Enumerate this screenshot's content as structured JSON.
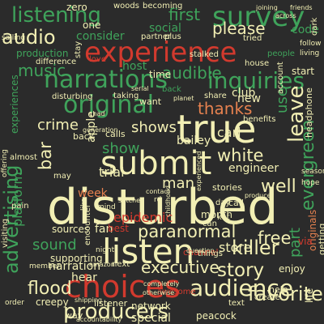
{
  "palette": {
    "background": "#2b2b2b",
    "cream": "#f2efb4",
    "green": "#3fa35b",
    "red": "#d23a2e",
    "orange": "#e5814f",
    "pale_green": "#93cf8a"
  },
  "words": [
    {
      "text": "disturbed",
      "color": "cream"
    },
    {
      "text": "experience",
      "color": "red"
    },
    {
      "text": "choices",
      "color": "red"
    },
    {
      "text": "listen",
      "color": "cream"
    },
    {
      "text": "true",
      "color": "cream"
    },
    {
      "text": "submit",
      "color": "cream"
    },
    {
      "text": "original",
      "color": "green"
    },
    {
      "text": "survey",
      "color": "green"
    },
    {
      "text": "listening",
      "color": "green"
    },
    {
      "text": "narrations",
      "color": "green"
    },
    {
      "text": "inquiries",
      "color": "green"
    },
    {
      "text": "advertising",
      "color": "green"
    },
    {
      "text": "audience",
      "color": "cream"
    },
    {
      "text": "producers",
      "color": "cream"
    },
    {
      "text": "paranormal",
      "color": "cream"
    },
    {
      "text": "story",
      "color": "cream"
    },
    {
      "text": "killer",
      "color": "cream"
    },
    {
      "text": "favorite",
      "color": "cream"
    },
    {
      "text": "flood",
      "color": "cream"
    },
    {
      "text": "free",
      "color": "cream"
    },
    {
      "text": "well",
      "color": "cream"
    },
    {
      "text": "white",
      "color": "cream"
    },
    {
      "text": "audio",
      "color": "cream"
    },
    {
      "text": "music",
      "color": "green"
    },
    {
      "text": "audible",
      "color": "green"
    },
    {
      "text": "please",
      "color": "cream"
    },
    {
      "text": "thanks",
      "color": "orange"
    },
    {
      "text": "leave",
      "color": "cream"
    },
    {
      "text": "show",
      "color": "green"
    },
    {
      "text": "shows",
      "color": "cream"
    },
    {
      "text": "crime",
      "color": "cream"
    },
    {
      "text": "bar",
      "color": "cream"
    },
    {
      "text": "evergreen",
      "color": "green"
    },
    {
      "text": "part",
      "color": "green"
    },
    {
      "text": "first",
      "color": "green"
    },
    {
      "text": "executive",
      "color": "cream"
    },
    {
      "text": "epidemic",
      "color": "red"
    },
    {
      "text": "sound",
      "color": "green"
    },
    {
      "text": "platform",
      "color": "green"
    },
    {
      "text": "trial",
      "color": "cream"
    },
    {
      "text": "week",
      "color": "orange"
    },
    {
      "text": "man",
      "color": "cream"
    },
    {
      "text": "carl",
      "color": "cream"
    },
    {
      "text": "bailey",
      "color": "cream"
    },
    {
      "text": "engineer",
      "color": "cream"
    },
    {
      "text": "store",
      "color": "cream"
    },
    {
      "text": "use",
      "color": "green"
    },
    {
      "text": "network",
      "color": "cream"
    },
    {
      "text": "special",
      "color": "cream"
    },
    {
      "text": "peacock",
      "color": "cream"
    },
    {
      "text": "consider",
      "color": "green"
    },
    {
      "text": "social",
      "color": "green"
    },
    {
      "text": "host",
      "color": "green"
    },
    {
      "text": "new",
      "color": "cream"
    },
    {
      "text": "code",
      "color": "green"
    },
    {
      "text": "time",
      "color": "cream"
    },
    {
      "text": "fan",
      "color": "cream"
    },
    {
      "text": "best",
      "color": "red"
    },
    {
      "text": "narration",
      "color": "cream"
    },
    {
      "text": "sources",
      "color": "cream"
    },
    {
      "text": "hear",
      "color": "cream"
    },
    {
      "text": "creepy",
      "color": "cream"
    },
    {
      "text": "stories",
      "color": "cream"
    },
    {
      "text": "month",
      "color": "cream"
    },
    {
      "text": "apple",
      "color": "cream"
    },
    {
      "text": "club",
      "color": "cream"
    },
    {
      "text": "back",
      "color": "cream"
    },
    {
      "text": "calls",
      "color": "cream"
    },
    {
      "text": "help",
      "color": "cream"
    },
    {
      "text": "enjoy",
      "color": "cream"
    },
    {
      "text": "supporting",
      "color": "cream"
    },
    {
      "text": "listener",
      "color": "cream"
    },
    {
      "text": "production",
      "color": "green"
    },
    {
      "text": "zero",
      "color": "cream"
    },
    {
      "text": "woods",
      "color": "cream"
    },
    {
      "text": "becoming",
      "color": "cream"
    },
    {
      "text": "one",
      "color": "cream"
    },
    {
      "text": "partner",
      "color": "cream"
    },
    {
      "text": "love",
      "color": "red"
    },
    {
      "text": "tried",
      "color": "cream"
    },
    {
      "text": "start",
      "color": "cream"
    },
    {
      "text": "account",
      "color": "cream"
    },
    {
      "text": "stalked",
      "color": "cream"
    },
    {
      "text": "house",
      "color": "cream"
    },
    {
      "text": "plus",
      "color": "cream"
    },
    {
      "text": "want",
      "color": "cream"
    },
    {
      "text": "share",
      "color": "cream"
    },
    {
      "text": "benefits",
      "color": "cream"
    },
    {
      "text": "headphone",
      "color": "cream"
    },
    {
      "text": "disturbing",
      "color": "cream"
    },
    {
      "text": "taking",
      "color": "cream"
    },
    {
      "text": "experiences",
      "color": "green"
    },
    {
      "text": "difference",
      "color": "cream"
    },
    {
      "text": "sailing",
      "color": "cream"
    },
    {
      "text": "awesome",
      "color": "red"
    },
    {
      "text": "generation",
      "color": "cream"
    },
    {
      "text": "member",
      "color": "cream"
    },
    {
      "text": "next",
      "color": "cream"
    },
    {
      "text": "order",
      "color": "cream"
    },
    {
      "text": "shipping",
      "color": "cream"
    },
    {
      "text": "accountability",
      "color": "cream"
    },
    {
      "text": "way",
      "color": "cream"
    },
    {
      "text": "text",
      "color": "cream"
    },
    {
      "text": "life",
      "color": "cream"
    },
    {
      "text": "originals",
      "color": "orange"
    },
    {
      "text": "getting",
      "color": "cream"
    },
    {
      "text": "visiting",
      "color": "cream"
    },
    {
      "text": "encounter",
      "color": "cream"
    },
    {
      "text": "pain",
      "color": "cream"
    },
    {
      "text": "stay",
      "color": "cream"
    },
    {
      "text": "offering",
      "color": "cream"
    },
    {
      "text": "channel",
      "color": "red"
    },
    {
      "text": "completely",
      "color": "cream"
    },
    {
      "text": "otherwise",
      "color": "cream"
    },
    {
      "text": "create",
      "color": "cream"
    },
    {
      "text": "call",
      "color": "cream"
    },
    {
      "text": "chad",
      "color": "cream"
    },
    {
      "text": "kat",
      "color": "cream"
    },
    {
      "text": "day",
      "color": "cream"
    },
    {
      "text": "can",
      "color": "cream"
    },
    {
      "text": "may",
      "color": "cream"
    },
    {
      "text": "things",
      "color": "cream"
    },
    {
      "text": "amazon",
      "color": "cream"
    },
    {
      "text": "almost",
      "color": "cream"
    },
    {
      "text": "back",
      "color": "green"
    },
    {
      "text": "friends",
      "color": "cream"
    },
    {
      "text": "joining",
      "color": "cream"
    },
    {
      "text": "across",
      "color": "cream"
    },
    {
      "text": "dark",
      "color": "cream"
    },
    {
      "text": "follow",
      "color": "cream"
    },
    {
      "text": "people",
      "color": "green"
    },
    {
      "text": "living",
      "color": "cream"
    },
    {
      "text": "serial",
      "color": "cream"
    },
    {
      "text": "via",
      "color": "red"
    },
    {
      "text": "season",
      "color": "cream"
    },
    {
      "text": "hope",
      "color": "cream"
    },
    {
      "text": "contact",
      "color": "cream"
    },
    {
      "text": "planet",
      "color": "cream"
    },
    {
      "text": "question",
      "color": "cream"
    },
    {
      "text": "producer",
      "color": "cream"
    },
    {
      "text": "experienced",
      "color": "cream"
    },
    {
      "text": "childhood",
      "color": "cream"
    },
    {
      "text": "night",
      "color": "cream"
    },
    {
      "text": "rd",
      "color": "cream"
    },
    {
      "text": "stitcher",
      "color": "cream"
    },
    {
      "text": "mind",
      "color": "cream"
    },
    {
      "text": "like",
      "color": "cream"
    }
  ]
}
